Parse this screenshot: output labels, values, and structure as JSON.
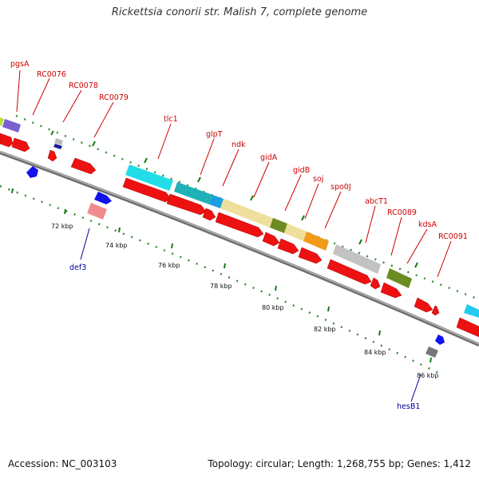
{
  "title": "Rickettsia conorii str. Malish 7, complete genome",
  "footer": {
    "accession": "Accession: NC_003103",
    "summary": "Topology: circular; Length: 1,268,755 bp; Genes: 1,412"
  },
  "colors": {
    "label_red": "#cc0000",
    "label_blue": "#000099",
    "backbone": "#8c8c8c",
    "dots": "#2e8b2e",
    "ticks": "#1a7a1a"
  },
  "tick_labels": [
    "72 kbp",
    "74 kbp",
    "76 kbp",
    "78 kbp",
    "80 kbp",
    "82 kbp",
    "84 kbp",
    "86 kbp"
  ],
  "gene_labels_top": [
    "pgsA",
    "RC0076",
    "RC0078",
    "RC0079",
    "tlc1",
    "glpT",
    "ndk",
    "gidA",
    "gidB",
    "soj",
    "spo0J",
    "abcT1",
    "RC0089",
    "kdsA",
    "RC0091"
  ],
  "gene_labels_bottom": [
    "def3",
    "hesB1"
  ]
}
